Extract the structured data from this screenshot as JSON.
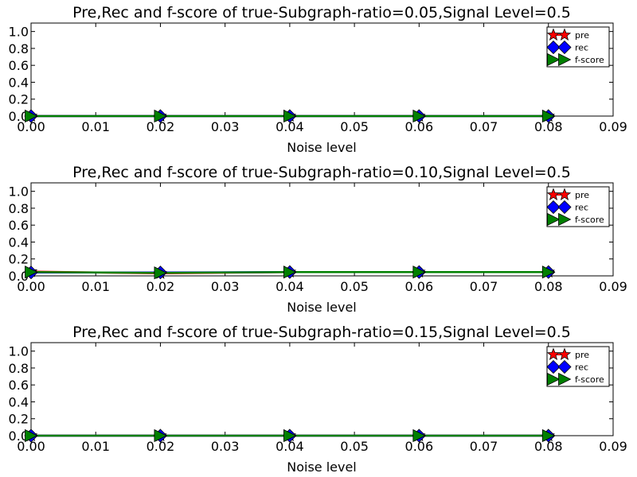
{
  "chart_data": [
    {
      "type": "line",
      "title": "Pre,Rec and f-score of true-Subgraph-ratio=0.05,Signal Level=0.5",
      "xlabel": "Noise level",
      "ylabel": "",
      "xlim": [
        0.0,
        0.09
      ],
      "ylim": [
        0.0,
        1.1
      ],
      "x_ticks": [
        "0.00",
        "0.01",
        "0.02",
        "0.03",
        "0.04",
        "0.05",
        "0.06",
        "0.07",
        "0.08",
        "0.09"
      ],
      "y_ticks": [
        "0.0",
        "0.2",
        "0.4",
        "0.6",
        "0.8",
        "1.0"
      ],
      "x": [
        0.0,
        0.02,
        0.04,
        0.06,
        0.08
      ],
      "series": [
        {
          "name": "pre",
          "values": [
            0.0,
            0.0,
            0.0,
            0.0,
            0.0
          ],
          "color": "#ff0000",
          "marker": "star"
        },
        {
          "name": "rec",
          "values": [
            0.0,
            0.0,
            0.0,
            0.0,
            0.0
          ],
          "color": "#0000ff",
          "marker": "diamond"
        },
        {
          "name": "f-score",
          "values": [
            0.0,
            0.0,
            0.0,
            0.0,
            0.0
          ],
          "color": "#008000",
          "marker": "triangle-right"
        }
      ],
      "legend_position": "top-right",
      "grid": false
    },
    {
      "type": "line",
      "title": "Pre,Rec and f-score of true-Subgraph-ratio=0.10,Signal Level=0.5",
      "xlabel": "Noise level",
      "ylabel": "",
      "xlim": [
        0.0,
        0.09
      ],
      "ylim": [
        0.0,
        1.1
      ],
      "x_ticks": [
        "0.00",
        "0.01",
        "0.02",
        "0.03",
        "0.04",
        "0.05",
        "0.06",
        "0.07",
        "0.08",
        "0.09"
      ],
      "y_ticks": [
        "0.0",
        "0.2",
        "0.4",
        "0.6",
        "0.8",
        "1.0"
      ],
      "x": [
        0.0,
        0.02,
        0.04,
        0.06,
        0.08
      ],
      "series": [
        {
          "name": "pre",
          "values": [
            0.05,
            0.03,
            0.045,
            0.045,
            0.045
          ],
          "color": "#ff0000",
          "marker": "star"
        },
        {
          "name": "rec",
          "values": [
            0.04,
            0.04,
            0.045,
            0.045,
            0.045
          ],
          "color": "#0000ff",
          "marker": "diamond"
        },
        {
          "name": "f-score",
          "values": [
            0.045,
            0.035,
            0.045,
            0.045,
            0.045
          ],
          "color": "#008000",
          "marker": "triangle-right"
        }
      ],
      "legend_position": "top-right",
      "grid": false
    },
    {
      "type": "line",
      "title": "Pre,Rec and f-score of true-Subgraph-ratio=0.15,Signal Level=0.5",
      "xlabel": "Noise level",
      "ylabel": "",
      "xlim": [
        0.0,
        0.09
      ],
      "ylim": [
        0.0,
        1.1
      ],
      "x_ticks": [
        "0.00",
        "0.01",
        "0.02",
        "0.03",
        "0.04",
        "0.05",
        "0.06",
        "0.07",
        "0.08",
        "0.09"
      ],
      "y_ticks": [
        "0.0",
        "0.2",
        "0.4",
        "0.6",
        "0.8",
        "1.0"
      ],
      "x": [
        0.0,
        0.02,
        0.04,
        0.06,
        0.08
      ],
      "series": [
        {
          "name": "pre",
          "values": [
            0.0,
            0.0,
            0.0,
            0.0,
            0.0
          ],
          "color": "#ff0000",
          "marker": "star"
        },
        {
          "name": "rec",
          "values": [
            0.0,
            0.0,
            0.0,
            0.0,
            0.0
          ],
          "color": "#0000ff",
          "marker": "diamond"
        },
        {
          "name": "f-score",
          "values": [
            0.0,
            0.0,
            0.0,
            0.0,
            0.0
          ],
          "color": "#008000",
          "marker": "triangle-right"
        }
      ],
      "legend_position": "top-right",
      "grid": false
    }
  ]
}
